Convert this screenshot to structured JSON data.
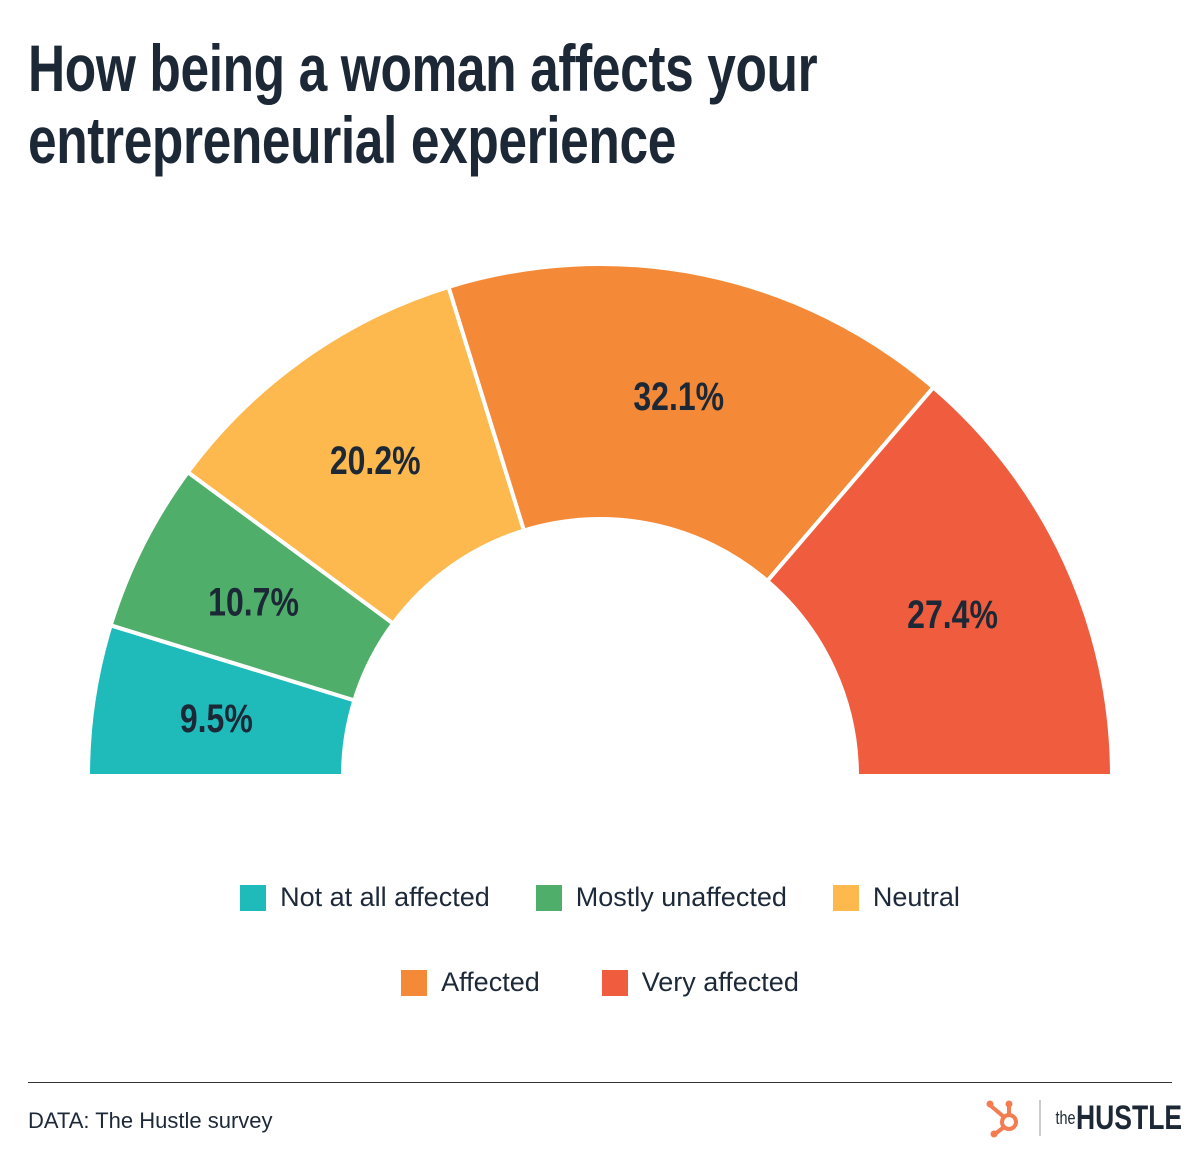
{
  "title_lines": [
    "How being a woman affects your",
    "entrepreneurial experience"
  ],
  "chart_data": {
    "type": "pie",
    "subtype": "semi-donut",
    "title": "How being a woman affects your entrepreneurial experience",
    "categories": [
      "Not at all affected",
      "Mostly unaffected",
      "Neutral",
      "Affected",
      "Very affected"
    ],
    "values": [
      9.5,
      10.7,
      20.2,
      32.1,
      27.4
    ],
    "labels": [
      "9.5%",
      "10.7%",
      "20.2%",
      "32.1%",
      "27.4%"
    ],
    "colors": [
      "#1fbbbb",
      "#4fae6a",
      "#fdb94e",
      "#f48a38",
      "#f05d3e"
    ],
    "legend_position": "bottom"
  },
  "source": "DATA: The Hustle survey",
  "logo": {
    "the": "the",
    "hustle": "HUSTLE",
    "icon": "hubspot-sprocket-icon",
    "color": "#f47c50"
  }
}
